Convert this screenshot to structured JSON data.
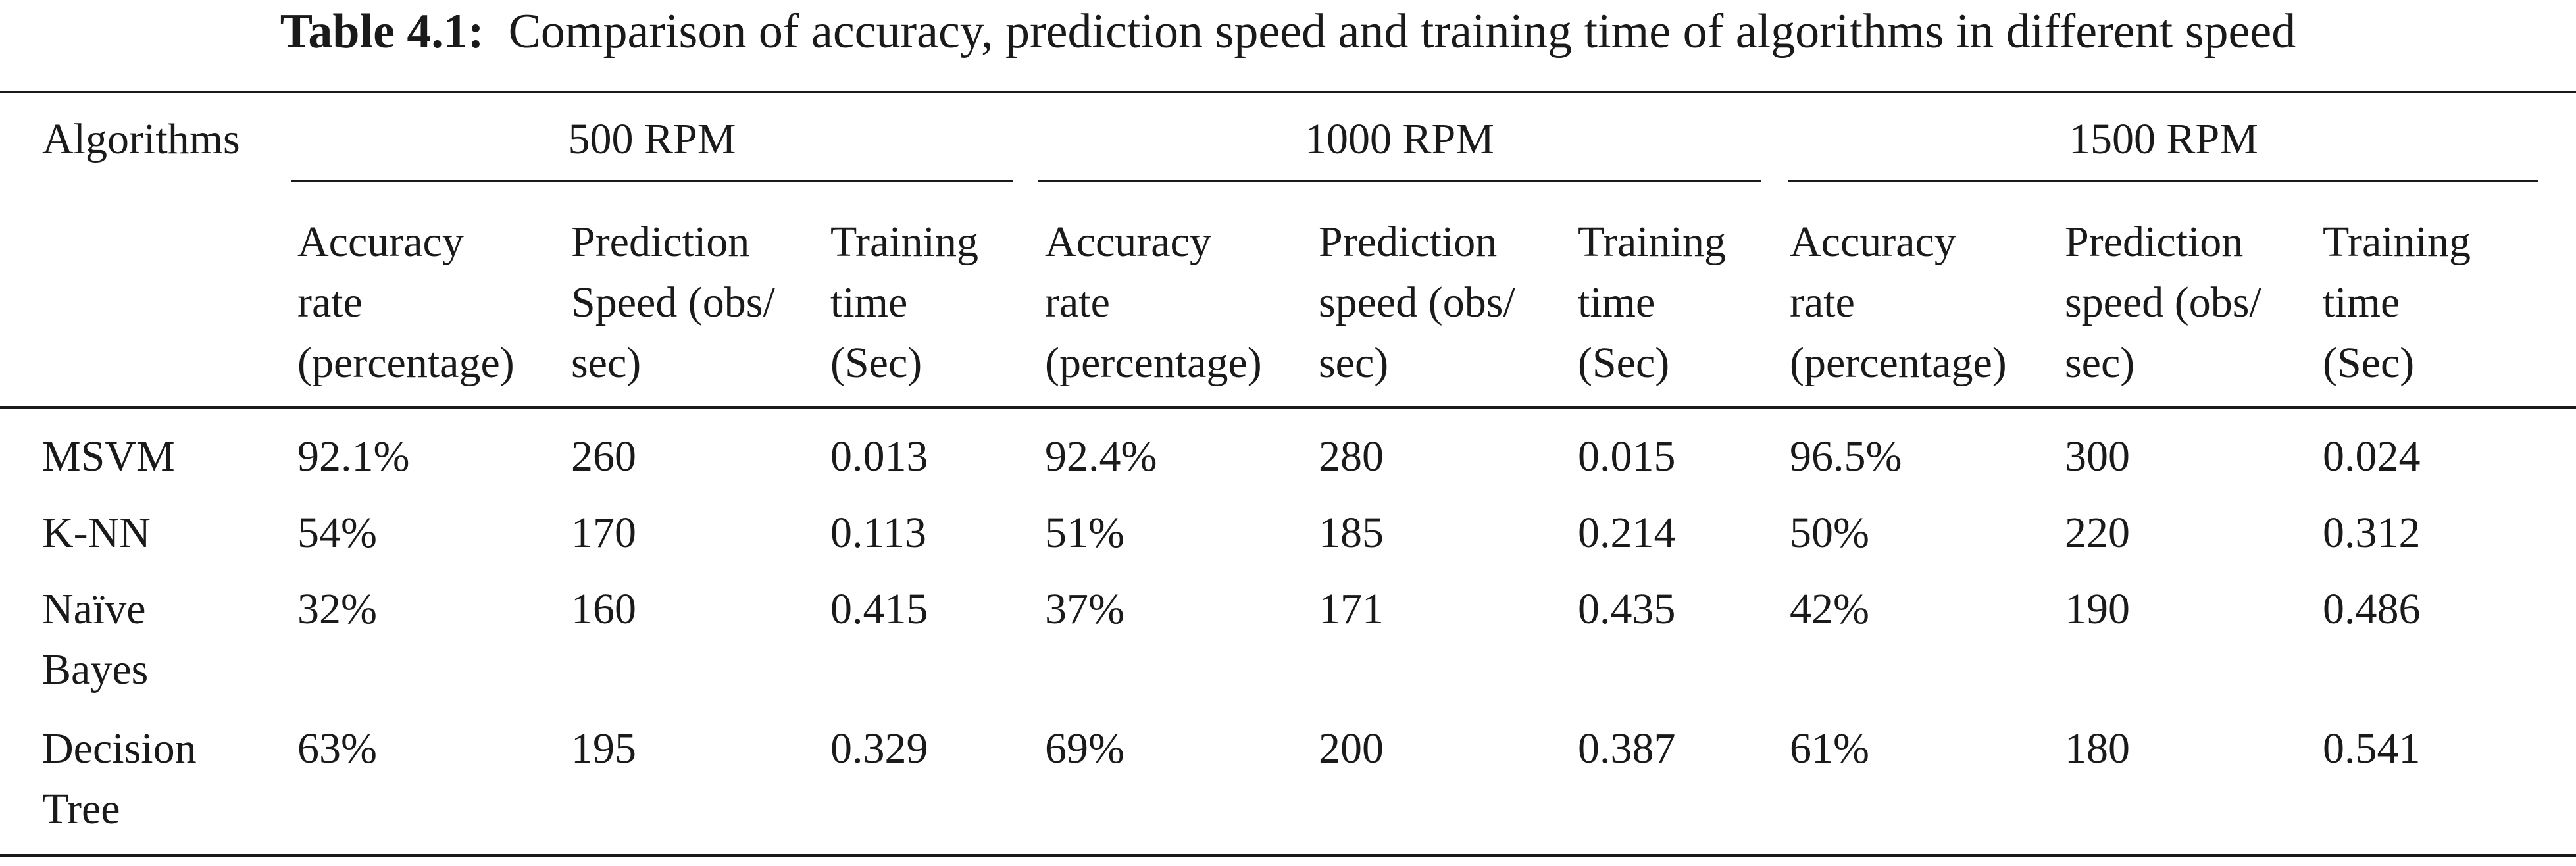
{
  "table": {
    "caption_label": "Table 4.1:",
    "caption_text": "Comparison of accuracy, prediction speed and training time of algorithms in different speed",
    "row_header_label": "Algorithms",
    "groups": [
      "500 RPM",
      "1000 RPM",
      "1500 RPM"
    ],
    "subheaders": [
      [
        "Accuracy",
        "rate",
        "(percentage)"
      ],
      [
        "Prediction",
        "Speed (obs/",
        "sec)"
      ],
      [
        "Training",
        "time",
        "(Sec)"
      ],
      [
        "Accuracy",
        "rate",
        "(percentage)"
      ],
      [
        "Prediction",
        "speed (obs/",
        "sec)"
      ],
      [
        "Training",
        "time",
        "(Sec)"
      ],
      [
        "Accuracy",
        "rate",
        "(percentage)"
      ],
      [
        "Prediction",
        "speed (obs/",
        "sec)"
      ],
      [
        "Training",
        "time",
        "(Sec)"
      ]
    ],
    "rows": [
      {
        "name": [
          "MSVM"
        ],
        "cells": [
          "92.1%",
          "260",
          "0.013",
          "92.4%",
          "280",
          "0.015",
          "96.5%",
          "300",
          "0.024"
        ]
      },
      {
        "name": [
          "K-NN"
        ],
        "cells": [
          "54%",
          "170",
          "0.113",
          "51%",
          "185",
          "0.214",
          "50%",
          "220",
          "0.312"
        ]
      },
      {
        "name": [
          "Naïve",
          "Bayes"
        ],
        "cells": [
          "32%",
          "160",
          "0.415",
          "37%",
          "171",
          "0.435",
          "42%",
          "190",
          "0.486"
        ]
      },
      {
        "name": [
          "Decision",
          "Tree"
        ],
        "cells": [
          "63%",
          "195",
          "0.329",
          "69%",
          "200",
          "0.387",
          "61%",
          "180",
          "0.541"
        ]
      }
    ]
  }
}
